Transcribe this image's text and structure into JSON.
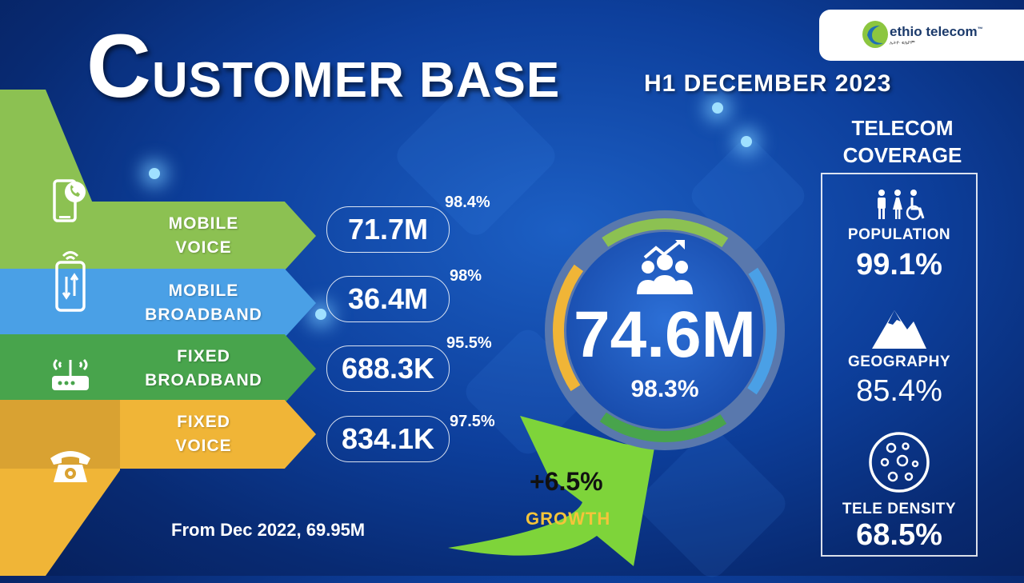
{
  "title": {
    "big_letter": "C",
    "rest": "USTOMER BASE",
    "subtitle": "H1 DECEMBER 2023"
  },
  "logo": {
    "name": "ethio telecom",
    "tm": "™",
    "tagline": "ኢትዮ ቴሌኮም"
  },
  "services": [
    {
      "label_line1": "MOBILE",
      "label_line2": "VOICE",
      "value": "71.7M",
      "pct": "98.4%",
      "icon": "smartphone-call-icon",
      "color": "#8cc152"
    },
    {
      "label_line1": "MOBILE",
      "label_line2": "BROADBAND",
      "value": "36.4M",
      "pct": "98%",
      "icon": "mobile-data-icon",
      "color": "#4aa0e6"
    },
    {
      "label_line1": "FIXED",
      "label_line2": "BROADBAND",
      "value": "688.3K",
      "pct": "95.5%",
      "icon": "router-icon",
      "color": "#48a44c"
    },
    {
      "label_line1": "FIXED",
      "label_line2": "VOICE",
      "value": "834.1K",
      "pct": "97.5%",
      "icon": "telephone-icon",
      "color": "#f0b537"
    }
  ],
  "total": {
    "value": "74.6M",
    "pct": "98.3%",
    "icon": "customers-growth-icon"
  },
  "growth": {
    "value": "+6.5%",
    "label": "GROWTH"
  },
  "from_text": "From Dec 2022, 69.95M",
  "coverage": {
    "title_line1": "TELECOM",
    "title_line2": "COVERAGE",
    "items": [
      {
        "label": "POPULATION",
        "value": "99.1%",
        "icon": "people-icon"
      },
      {
        "label": "GEOGRAPHY",
        "value": "85.4%",
        "icon": "mountain-icon"
      },
      {
        "label": "TELE DENSITY",
        "value": "68.5%",
        "icon": "density-circle-icon"
      }
    ]
  },
  "colors": {
    "green_light": "#8cc152",
    "blue": "#4aa0e6",
    "green": "#48a44c",
    "yellow": "#f0b537",
    "background": "#0d3f9c"
  }
}
